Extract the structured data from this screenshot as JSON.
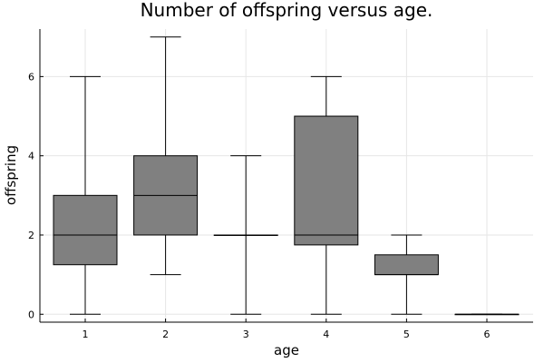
{
  "chart_data": {
    "type": "box",
    "title": "Number of offspring versus age.",
    "xlabel": "age",
    "ylabel": "offspring",
    "categories": [
      "1",
      "2",
      "3",
      "4",
      "5",
      "6"
    ],
    "ylim": [
      -0.2,
      7.2
    ],
    "yticks": [
      0,
      2,
      4,
      6
    ],
    "grid": true,
    "box_color": "#808080",
    "boxes": [
      {
        "category": "1",
        "min": 0,
        "q1": 1.25,
        "median": 2,
        "q3": 3,
        "max": 6
      },
      {
        "category": "2",
        "min": 1,
        "q1": 2,
        "median": 3,
        "q3": 4,
        "max": 7
      },
      {
        "category": "3",
        "min": 0,
        "q1": 2,
        "median": 2,
        "q3": 2,
        "max": 4
      },
      {
        "category": "4",
        "min": 0,
        "q1": 1.75,
        "median": 2,
        "q3": 5,
        "max": 6
      },
      {
        "category": "5",
        "min": 0,
        "q1": 1,
        "median": 1,
        "q3": 1.5,
        "max": 2
      },
      {
        "category": "6",
        "min": 0,
        "q1": 0,
        "median": 0,
        "q3": 0,
        "max": 0
      }
    ]
  }
}
